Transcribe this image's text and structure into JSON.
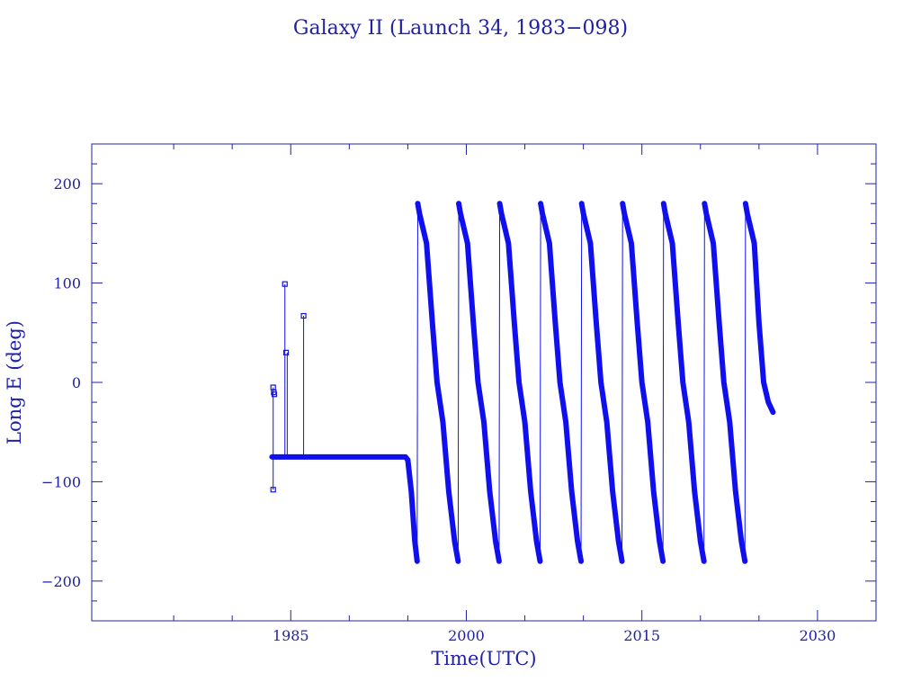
{
  "chart_data": {
    "type": "line",
    "title": "Galaxy II (Launch 34, 1983−098)",
    "xlabel": "Time(UTC)",
    "ylabel": "Long E (deg)",
    "xlim": [
      1968,
      2035
    ],
    "ylim": [
      -240,
      240
    ],
    "xticks": [
      1985,
      2000,
      2015,
      2030
    ],
    "xtick_labels": [
      "1985",
      "2000",
      "2015",
      "2030"
    ],
    "yticks": [
      200,
      100,
      0,
      -100,
      -200
    ],
    "ytick_labels": [
      "200",
      "100",
      "0",
      "−100",
      "−200"
    ],
    "grid": false,
    "legend": "none",
    "colors": {
      "line": "#1010ee",
      "axis": "#2020a8",
      "text": "#2020a8"
    },
    "series": [
      {
        "name": "",
        "x": [
          1983.4,
          1983.5,
          1983.6,
          1984.0,
          1984.2,
          1984.7,
          1985.0,
          1985.4,
          1986.0,
          1987.0,
          1989.0,
          1991.0,
          1993.0,
          1994.0,
          1994.5,
          1994.8,
          1995.0,
          1995.3,
          1995.6,
          1995.8,
          1995.85,
          1996.0,
          1996.6,
          1997.1,
          1997.5,
          1998.0,
          1998.5,
          1999.0,
          1999.3,
          1999.35,
          1999.5,
          2000.1,
          2000.6,
          2001.0,
          2001.5,
          2002.0,
          2002.5,
          2002.8,
          2002.85,
          2003.0,
          2003.6,
          2004.1,
          2004.5,
          2005.0,
          2005.5,
          2006.0,
          2006.3,
          2006.35,
          2006.5,
          2007.1,
          2007.6,
          2008.0,
          2008.5,
          2009.0,
          2009.5,
          2009.8,
          2009.85,
          2010.0,
          2010.6,
          2011.1,
          2011.5,
          2012.0,
          2012.5,
          2013.0,
          2013.3,
          2013.35,
          2013.5,
          2014.1,
          2014.6,
          2015.0,
          2015.5,
          2016.0,
          2016.5,
          2016.8,
          2016.85,
          2017.0,
          2017.6,
          2018.1,
          2018.5,
          2019.0,
          2019.5,
          2020.0,
          2020.3,
          2020.35,
          2020.5,
          2021.1,
          2021.6,
          2022.0,
          2022.5,
          2023.0,
          2023.5,
          2023.8,
          2023.85,
          2024.0,
          2024.6,
          2025.0,
          2025.4,
          2025.8,
          2026.2
        ],
        "y": [
          -75,
          -75,
          -75,
          -75,
          -75,
          -75,
          -75,
          -75,
          -75,
          -75,
          -75,
          -75,
          -75,
          -75,
          -75,
          -75,
          -78,
          -110,
          -160,
          -180,
          180,
          170,
          140,
          60,
          0,
          -40,
          -110,
          -160,
          -180,
          180,
          170,
          140,
          60,
          0,
          -40,
          -110,
          -160,
          -180,
          180,
          170,
          140,
          60,
          0,
          -40,
          -110,
          -160,
          -180,
          180,
          170,
          140,
          60,
          0,
          -40,
          -110,
          -160,
          -180,
          180,
          170,
          140,
          60,
          0,
          -40,
          -110,
          -160,
          -180,
          180,
          170,
          140,
          60,
          0,
          -40,
          -110,
          -160,
          -180,
          180,
          170,
          140,
          60,
          0,
          -40,
          -110,
          -160,
          -180,
          180,
          170,
          140,
          60,
          0,
          -40,
          -110,
          -160,
          -180,
          180,
          170,
          140,
          60,
          0,
          -20,
          -30
        ]
      }
    ],
    "outlier_points": [
      {
        "x": 1983.5,
        "y": -5
      },
      {
        "x": 1983.55,
        "y": -10
      },
      {
        "x": 1983.6,
        "y": -12
      },
      {
        "x": 1983.5,
        "y": -108
      },
      {
        "x": 1984.5,
        "y": 99
      },
      {
        "x": 1984.6,
        "y": 30
      },
      {
        "x": 1986.1,
        "y": 67
      }
    ],
    "spikes": [
      {
        "x": 1983.5,
        "top": -5,
        "bottom": -108
      },
      {
        "x": 1984.5,
        "top": 99,
        "bottom": -75
      },
      {
        "x": 1984.7,
        "top": 30,
        "bottom": -75
      },
      {
        "x": 1986.1,
        "top": 67,
        "bottom": -75
      }
    ]
  }
}
